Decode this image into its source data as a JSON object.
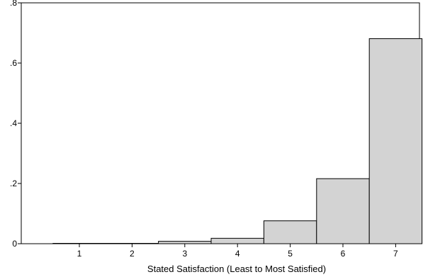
{
  "chart_data": {
    "type": "bar",
    "title": "",
    "xlabel": "Stated Satisfaction (Least to Most Satisfied)",
    "ylabel": "",
    "categories": [
      "1",
      "2",
      "3",
      "4",
      "5",
      "6",
      "7"
    ],
    "values": [
      0.001,
      0.001,
      0.008,
      0.018,
      0.076,
      0.216,
      0.681
    ],
    "ylim": [
      0,
      0.8
    ],
    "yticks": [
      0,
      0.2,
      0.4,
      0.6,
      0.8
    ],
    "ytick_labels": [
      "0",
      ".2",
      ".4",
      ".6",
      ".8"
    ],
    "grid": false,
    "legend": "none",
    "bar_color": "#d3d3d3",
    "bar_edge_color": "#000000"
  }
}
